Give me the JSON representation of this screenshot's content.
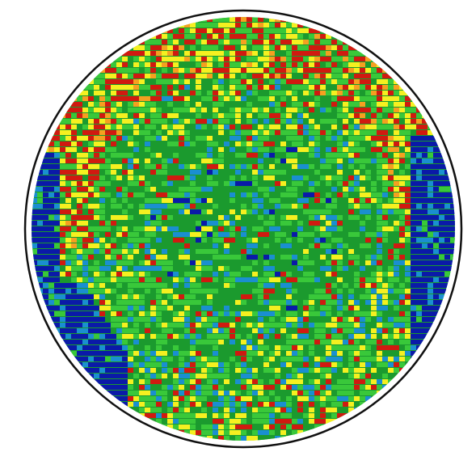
{
  "image": {
    "subject": "circular-heatmap",
    "background": "#ffffff",
    "outline_color": "#111111",
    "palette": {
      "dark_blue": "#0a1aa8",
      "light_blue": "#1a8fd0",
      "dark_green": "#1b9a2e",
      "green": "#39c83a",
      "yellow": "#f5f020",
      "orange": "#f5a020",
      "red": "#d01a10"
    }
  }
}
